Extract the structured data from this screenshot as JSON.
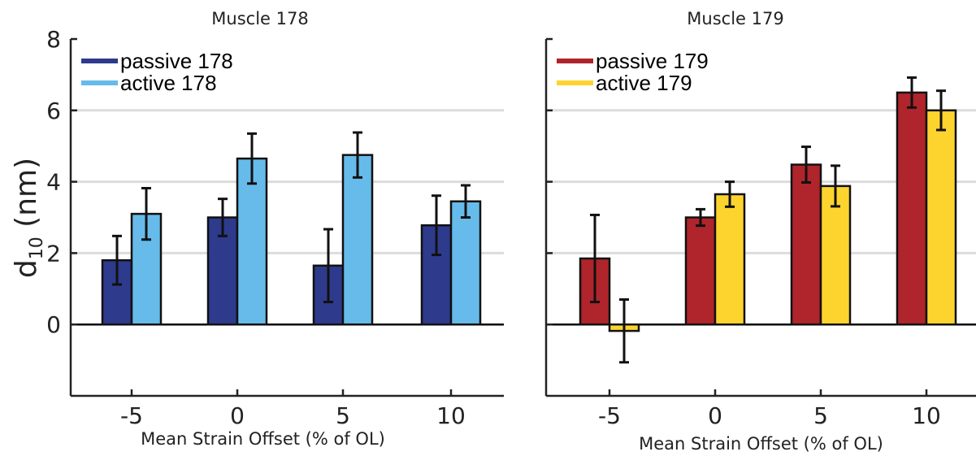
{
  "ylabel_main": "d",
  "ylabel_sub": "10",
  "ylabel_unit": " (nm)",
  "chart_data": [
    {
      "type": "bar",
      "title": "Muscle 178",
      "xlabel": "Mean Strain Offset (% of OL)",
      "ylabel": "d10 (nm)",
      "categories": [
        "-5",
        "0",
        "5",
        "10"
      ],
      "ylim": [
        -2,
        8
      ],
      "yticks": [
        "8",
        "6",
        "4",
        "2",
        "0"
      ],
      "grid": true,
      "legend_position": "top-left",
      "series": [
        {
          "name": "passive 178",
          "color": "#2e3a8c",
          "values": [
            1.8,
            3.0,
            1.65,
            2.78
          ],
          "errors": [
            0.68,
            0.52,
            1.02,
            0.83
          ]
        },
        {
          "name": "active 178",
          "color": "#66bbea",
          "values": [
            3.1,
            4.65,
            4.75,
            3.45
          ],
          "errors": [
            0.72,
            0.7,
            0.63,
            0.45
          ]
        }
      ]
    },
    {
      "type": "bar",
      "title": "Muscle 179",
      "xlabel": "Mean Strain Offset (% of OL)",
      "categories": [
        "-5",
        "0",
        "5",
        "10"
      ],
      "ylim": [
        -2,
        8
      ],
      "grid": true,
      "legend_position": "top-left",
      "series": [
        {
          "name": "passive 179",
          "color": "#b0242b",
          "values": [
            1.85,
            3.0,
            4.48,
            6.5
          ],
          "errors": [
            1.22,
            0.23,
            0.5,
            0.42
          ]
        },
        {
          "name": "active 179",
          "color": "#fdd42e",
          "values": [
            -0.18,
            3.65,
            3.88,
            6.0
          ],
          "errors": [
            0.88,
            0.35,
            0.57,
            0.55
          ]
        }
      ]
    }
  ]
}
